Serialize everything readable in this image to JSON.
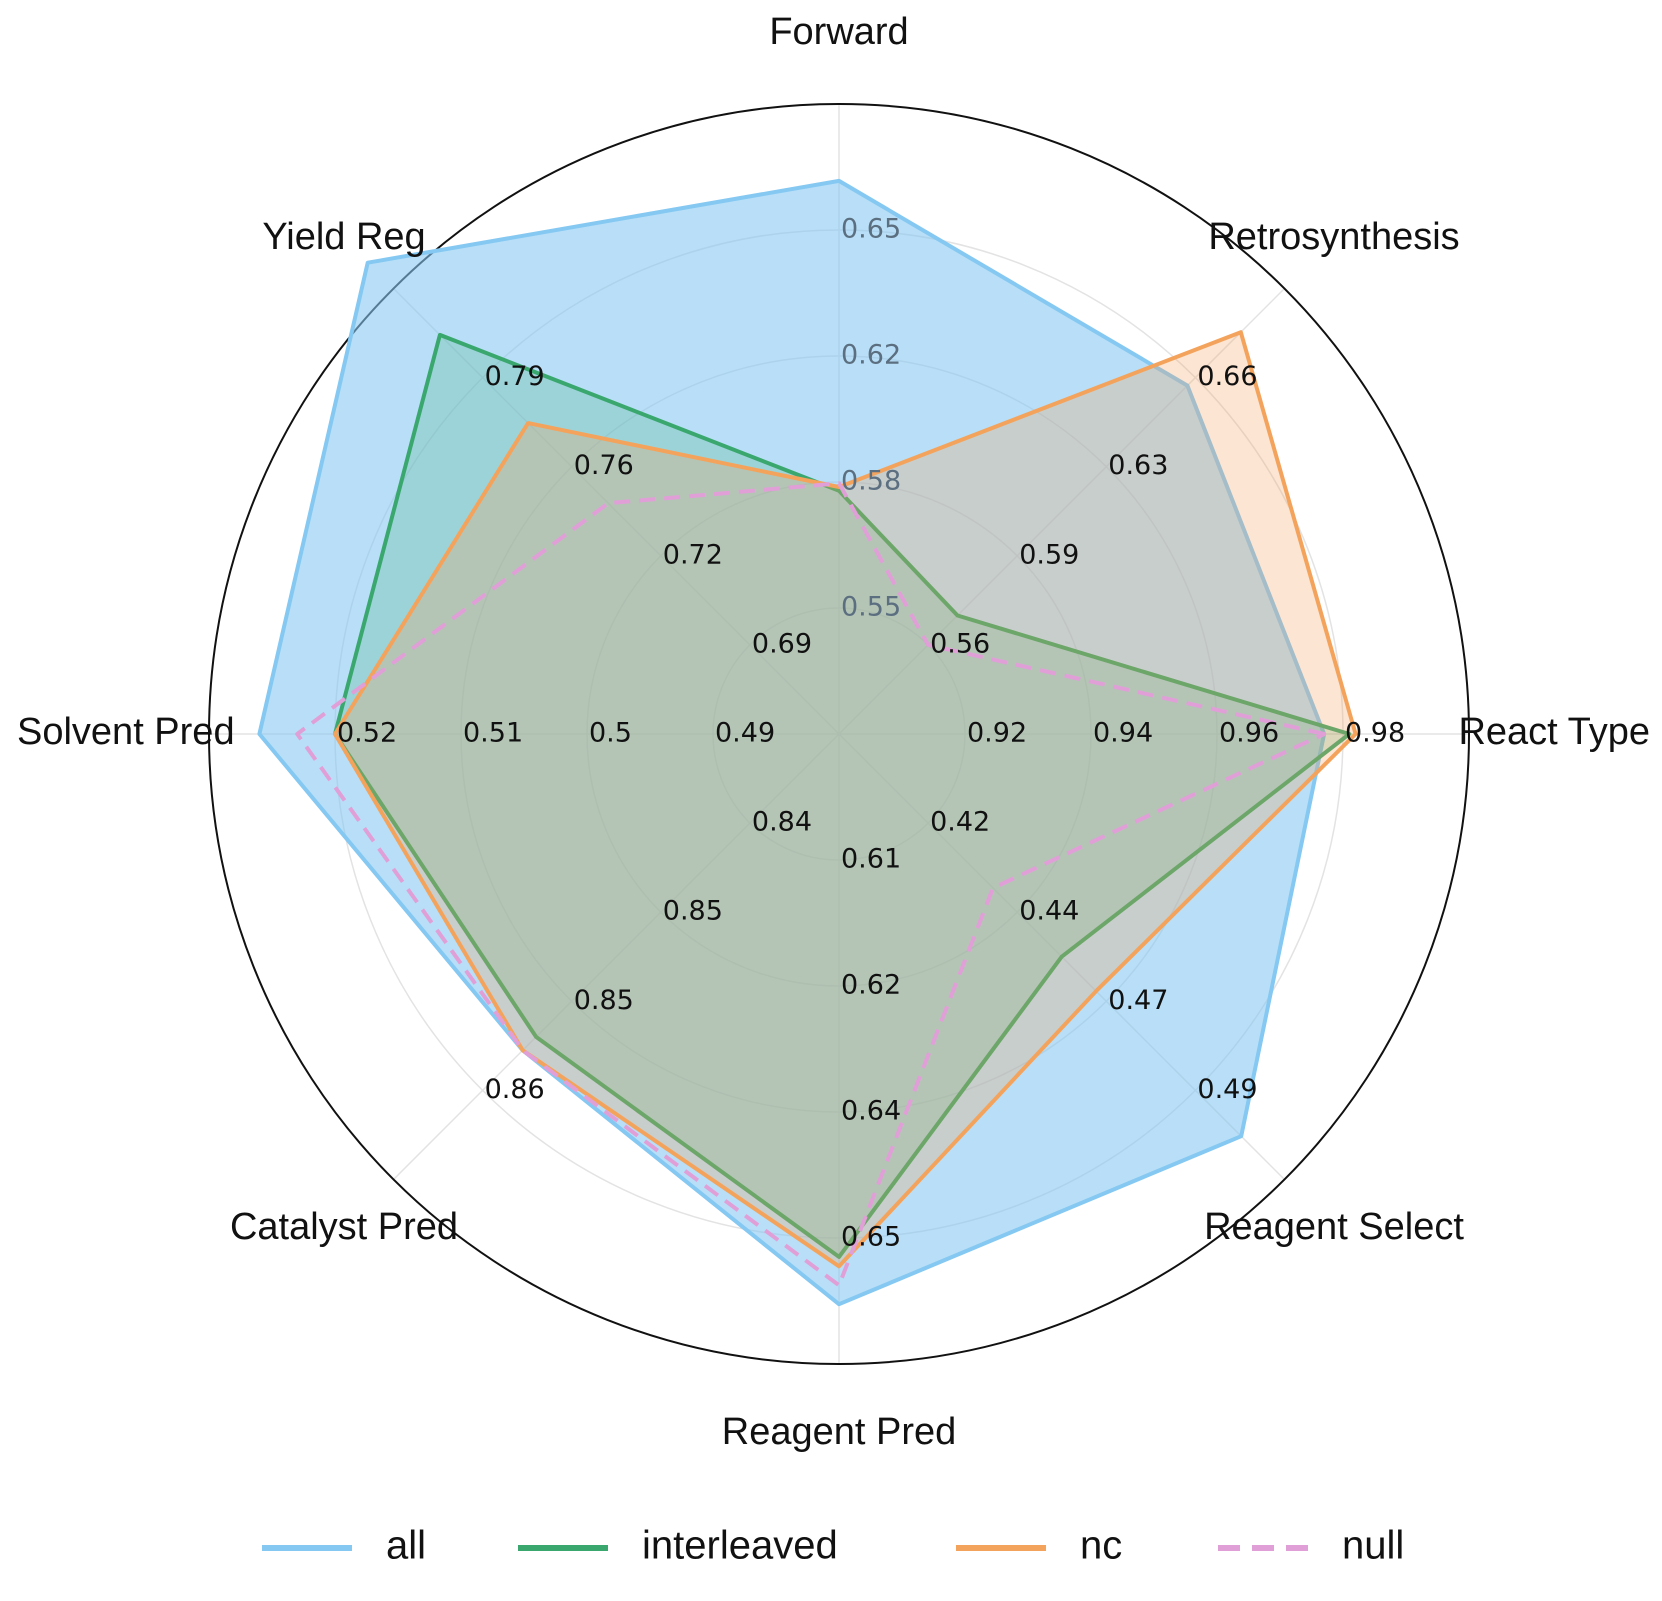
{
  "chart_data": {
    "type": "radar",
    "axes": [
      "React Type",
      "Retrosynthesis",
      "Forward",
      "Yield Reg",
      "Solvent Pred",
      "Catalyst Pred",
      "Reagent Pred",
      "Reagent Select"
    ],
    "axis_ticks": [
      [
        "0.92",
        "0.94",
        "0.96",
        "0.98"
      ],
      [
        "0.56",
        "0.59",
        "0.63",
        "0.66"
      ],
      [
        "0.55",
        "0.58",
        "0.62",
        "0.65"
      ],
      [
        "0.69",
        "0.72",
        "0.76",
        "0.79"
      ],
      [
        "0.49",
        "0.5",
        "0.51",
        "0.52"
      ],
      [
        "0.84",
        "0.85",
        "0.85",
        "0.86"
      ],
      [
        "0.61",
        "0.62",
        "0.64",
        "0.65"
      ],
      [
        "0.42",
        "0.44",
        "0.47",
        "0.49"
      ]
    ],
    "series": [
      {
        "name": "all",
        "values": [
          0.977,
          0.657,
          0.663,
          0.833,
          0.526,
          0.857,
          0.657,
          0.502
        ],
        "color": "#85c8f2",
        "fill": "#85c8f2",
        "fill_opacity": 0.58,
        "dashed": false
      },
      {
        "name": "interleaved",
        "values": [
          0.981,
          0.571,
          0.581,
          0.806,
          0.52,
          0.856,
          0.652,
          0.455
        ],
        "color": "#3aa86e",
        "fill": "#3aa86e",
        "fill_opacity": 0.22,
        "dashed": false
      },
      {
        "name": "nc",
        "values": [
          0.982,
          0.677,
          0.582,
          0.773,
          0.52,
          0.857,
          0.653,
          0.464
        ],
        "color": "#f4a35c",
        "fill": "#f4a35c",
        "fill_opacity": 0.28,
        "dashed": false
      },
      {
        "name": "null",
        "values": [
          0.977,
          0.56,
          0.583,
          0.743,
          0.523,
          0.857,
          0.655,
          0.437
        ],
        "color": "#e19fd8",
        "fill": "none",
        "fill_opacity": 0,
        "dashed": true
      }
    ],
    "grid": true,
    "legend": "bottom"
  }
}
